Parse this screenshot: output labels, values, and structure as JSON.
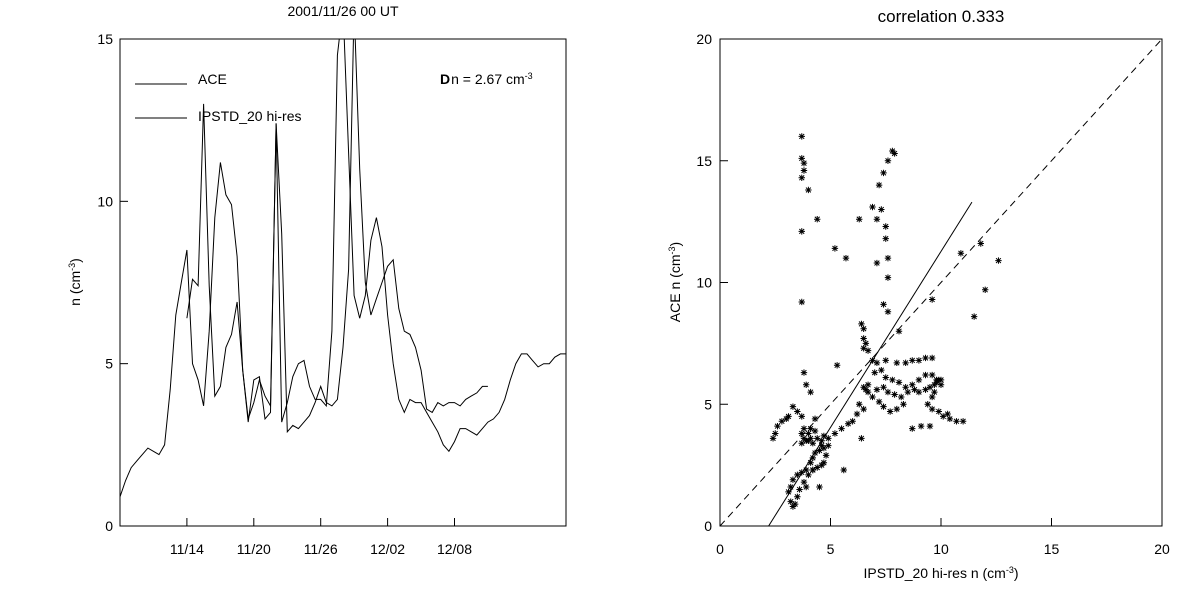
{
  "chart_data": [
    {
      "type": "line",
      "title": "2001/11/26 00 UT",
      "xlabel": "",
      "ylabel": "n (cm",
      "ylabel_sup": "-3",
      "ylabel_close": ")",
      "xlim": [
        0,
        40
      ],
      "ylim": [
        0,
        15
      ],
      "x_ticks": [
        {
          "label": "11/14",
          "x": 6.0
        },
        {
          "label": "11/20",
          "x": 12.0
        },
        {
          "label": "11/26",
          "x": 18.0
        },
        {
          "label": "12/02",
          "x": 24.0
        },
        {
          "label": "12/08",
          "x": 30.0
        }
      ],
      "y_ticks": [
        0,
        5,
        10,
        15
      ],
      "grid": false,
      "legend_position": "top-left",
      "annotation": {
        "bold": "D",
        "text": "n = 2.67 cm",
        "sup": "-3"
      },
      "series": [
        {
          "name": "ACE",
          "x": [
            0,
            0.5,
            1,
            1.5,
            2,
            2.5,
            3,
            3.5,
            4,
            4.5,
            5,
            5.5,
            6,
            6.5,
            7,
            7.5,
            8,
            8.5,
            9,
            9.5,
            10,
            10.5,
            11,
            11.5,
            12,
            12.5,
            13,
            13.5,
            14,
            14.5,
            15,
            15.5,
            16,
            16.5,
            17,
            17.5,
            18,
            18.5,
            19,
            19.5,
            20,
            20.5,
            21,
            21.5,
            22,
            22.5,
            23,
            23.5,
            24,
            24.5,
            25,
            25.5,
            26,
            26.5,
            27,
            27.5,
            28,
            28.5,
            29,
            29.5,
            30,
            30.5,
            31,
            31.5,
            32,
            32.5,
            33,
            33.5,
            34,
            34.5,
            35,
            35.5,
            36,
            36.5,
            37,
            37.5,
            38,
            38.5,
            39,
            39.5,
            40
          ],
          "values": [
            0.9,
            1.4,
            1.8,
            2.0,
            2.2,
            2.4,
            2.3,
            2.2,
            2.5,
            4.2,
            6.5,
            7.5,
            8.5,
            5.0,
            4.5,
            3.7,
            6.0,
            9.5,
            11.2,
            10.2,
            9.9,
            8.3,
            4.8,
            3.3,
            3.8,
            4.5,
            4.0,
            3.7,
            12.4,
            3.2,
            3.8,
            4.6,
            5.0,
            5.1,
            4.3,
            3.9,
            3.9,
            3.7,
            6.0,
            14.5,
            16.0,
            11.5,
            7.1,
            6.4,
            7.1,
            8.8,
            9.5,
            8.6,
            6.5,
            5.0,
            3.9,
            3.5,
            3.9,
            3.8,
            3.8,
            3.5,
            3.2,
            2.9,
            2.5,
            2.3,
            2.6,
            3.0,
            3.0,
            2.9,
            2.8,
            3.0,
            3.2,
            3.3,
            3.5,
            3.9,
            4.5,
            5.0,
            5.3,
            5.3,
            5.1,
            4.9,
            5.0,
            5.0,
            5.2,
            5.3,
            5.3
          ]
        },
        {
          "name": "IPSTD_20 hi-res",
          "x": [
            6,
            6.5,
            7,
            7.5,
            8,
            8.5,
            9,
            9.5,
            10,
            10.5,
            11,
            11.5,
            12,
            12.5,
            13,
            13.5,
            14,
            14.5,
            15,
            15.5,
            16,
            16.5,
            17,
            17.5,
            18,
            18.5,
            19,
            19.5,
            20,
            20.5,
            21,
            21.5,
            22,
            22.5,
            23,
            23.5,
            24,
            24.5,
            25,
            25.5,
            26,
            26.5,
            27,
            27.5,
            28,
            28.5,
            29,
            29.5,
            30,
            30.5,
            31,
            31.5,
            32,
            32.5,
            33
          ],
          "values": [
            6.4,
            7.6,
            7.4,
            13.0,
            7.4,
            4.0,
            4.3,
            5.5,
            5.9,
            6.9,
            4.8,
            3.2,
            4.5,
            4.6,
            3.3,
            3.5,
            12.4,
            9.0,
            2.9,
            3.1,
            3.0,
            3.2,
            3.4,
            3.8,
            4.3,
            3.8,
            3.7,
            3.9,
            5.5,
            7.9,
            16.0,
            11.0,
            7.5,
            6.5,
            7.0,
            7.5,
            8.0,
            8.2,
            6.7,
            6.0,
            5.9,
            5.5,
            4.8,
            3.6,
            3.5,
            3.8,
            3.7,
            3.8,
            3.8,
            3.7,
            3.9,
            4.0,
            4.1,
            4.3,
            4.3
          ]
        }
      ]
    },
    {
      "type": "scatter",
      "title": "correlation 0.333",
      "xlabel": "IPSTD_20 hi-res n (cm",
      "xlabel_sup": "-3",
      "xlabel_close": ")",
      "ylabel": "ACE n (cm",
      "ylabel_sup": "-3",
      "ylabel_close": ")",
      "xlim": [
        0,
        20
      ],
      "ylim": [
        0,
        20
      ],
      "x_ticks": [
        0,
        5,
        10,
        15,
        20
      ],
      "y_ticks": [
        0,
        5,
        10,
        15,
        20
      ],
      "grid": false,
      "points": [
        [
          3.7,
          16.0
        ],
        [
          3.7,
          15.1
        ],
        [
          3.8,
          14.9
        ],
        [
          3.8,
          14.6
        ],
        [
          3.7,
          14.3
        ],
        [
          4.0,
          13.8
        ],
        [
          4.4,
          12.6
        ],
        [
          3.7,
          12.1
        ],
        [
          5.2,
          11.4
        ],
        [
          5.7,
          11.0
        ],
        [
          3.7,
          9.2
        ],
        [
          6.3,
          12.6
        ],
        [
          6.9,
          13.1
        ],
        [
          7.1,
          12.6
        ],
        [
          7.5,
          12.3
        ],
        [
          7.2,
          14.0
        ],
        [
          7.4,
          14.5
        ],
        [
          7.6,
          15.0
        ],
        [
          7.8,
          15.4
        ],
        [
          7.9,
          15.3
        ],
        [
          7.3,
          13.0
        ],
        [
          7.5,
          11.8
        ],
        [
          7.6,
          11.0
        ],
        [
          7.1,
          10.8
        ],
        [
          7.6,
          10.2
        ],
        [
          7.4,
          9.1
        ],
        [
          7.6,
          8.8
        ],
        [
          8.1,
          8.0
        ],
        [
          6.4,
          8.3
        ],
        [
          6.5,
          8.1
        ],
        [
          6.5,
          7.7
        ],
        [
          6.6,
          7.5
        ],
        [
          6.5,
          7.3
        ],
        [
          6.7,
          7.2
        ],
        [
          6.9,
          6.8
        ],
        [
          7.0,
          6.3
        ],
        [
          6.7,
          5.8
        ],
        [
          6.6,
          5.6
        ],
        [
          6.3,
          5.0
        ],
        [
          6.5,
          4.8
        ],
        [
          6.2,
          4.6
        ],
        [
          6.0,
          4.3
        ],
        [
          5.8,
          4.2
        ],
        [
          5.5,
          4.0
        ],
        [
          5.2,
          3.8
        ],
        [
          4.9,
          3.6
        ],
        [
          4.7,
          3.2
        ],
        [
          10.9,
          11.2
        ],
        [
          11.8,
          11.6
        ],
        [
          12.6,
          10.9
        ],
        [
          12.0,
          9.7
        ],
        [
          11.5,
          8.6
        ],
        [
          9.6,
          9.3
        ],
        [
          5.3,
          6.6
        ],
        [
          6.4,
          3.6
        ],
        [
          5.6,
          2.3
        ],
        [
          3.8,
          6.3
        ],
        [
          3.9,
          5.8
        ],
        [
          4.1,
          5.5
        ],
        [
          3.3,
          4.9
        ],
        [
          3.5,
          4.7
        ],
        [
          3.7,
          4.5
        ],
        [
          4.3,
          4.4
        ],
        [
          4.1,
          4.0
        ],
        [
          3.0,
          4.4
        ],
        [
          2.8,
          4.3
        ],
        [
          2.6,
          4.1
        ],
        [
          2.5,
          3.8
        ],
        [
          2.4,
          3.6
        ],
        [
          3.1,
          4.5
        ],
        [
          3.8,
          4.0
        ],
        [
          3.7,
          3.8
        ],
        [
          3.8,
          3.6
        ],
        [
          3.9,
          3.5
        ],
        [
          3.7,
          3.4
        ],
        [
          4.0,
          3.5
        ],
        [
          4.1,
          3.6
        ],
        [
          4.2,
          3.4
        ],
        [
          4.4,
          3.6
        ],
        [
          4.6,
          3.5
        ],
        [
          4.6,
          3.3
        ],
        [
          4.5,
          3.1
        ],
        [
          4.3,
          3.0
        ],
        [
          4.2,
          2.8
        ],
        [
          4.1,
          2.6
        ],
        [
          3.9,
          2.3
        ],
        [
          3.7,
          2.2
        ],
        [
          3.5,
          2.1
        ],
        [
          3.3,
          1.9
        ],
        [
          3.2,
          1.6
        ],
        [
          3.1,
          1.4
        ],
        [
          3.2,
          1.0
        ],
        [
          3.3,
          0.8
        ],
        [
          3.4,
          0.9
        ],
        [
          3.5,
          1.2
        ],
        [
          3.6,
          1.5
        ],
        [
          3.8,
          1.8
        ],
        [
          4.0,
          2.1
        ],
        [
          4.2,
          2.3
        ],
        [
          4.4,
          2.4
        ],
        [
          4.6,
          2.5
        ],
        [
          4.7,
          2.6
        ],
        [
          4.8,
          2.9
        ],
        [
          4.9,
          3.3
        ],
        [
          4.7,
          3.7
        ],
        [
          4.3,
          3.9
        ],
        [
          4.0,
          3.8
        ],
        [
          4.2,
          2.3
        ],
        [
          3.9,
          1.6
        ],
        [
          4.5,
          1.6
        ],
        [
          7.1,
          5.6
        ],
        [
          7.4,
          5.7
        ],
        [
          7.6,
          5.5
        ],
        [
          7.9,
          5.4
        ],
        [
          8.2,
          5.3
        ],
        [
          8.5,
          5.5
        ],
        [
          8.8,
          5.6
        ],
        [
          9.0,
          5.5
        ],
        [
          9.3,
          5.6
        ],
        [
          9.5,
          5.7
        ],
        [
          9.7,
          5.8
        ],
        [
          9.8,
          6.0
        ],
        [
          10.0,
          6.0
        ],
        [
          9.6,
          6.2
        ],
        [
          9.3,
          6.2
        ],
        [
          9.0,
          6.0
        ],
        [
          8.7,
          5.8
        ],
        [
          8.4,
          5.7
        ],
        [
          8.1,
          5.9
        ],
        [
          7.8,
          6.0
        ],
        [
          7.5,
          6.1
        ],
        [
          7.3,
          6.4
        ],
        [
          7.1,
          6.7
        ],
        [
          7.5,
          6.8
        ],
        [
          8.0,
          6.7
        ],
        [
          8.4,
          6.7
        ],
        [
          8.7,
          6.8
        ],
        [
          9.0,
          6.8
        ],
        [
          9.3,
          6.9
        ],
        [
          9.6,
          6.9
        ],
        [
          9.9,
          6.0
        ],
        [
          9.8,
          5.9
        ],
        [
          10.0,
          5.8
        ],
        [
          9.7,
          5.5
        ],
        [
          9.6,
          5.3
        ],
        [
          9.4,
          5.0
        ],
        [
          9.6,
          4.8
        ],
        [
          9.9,
          4.7
        ],
        [
          10.1,
          4.5
        ],
        [
          10.4,
          4.4
        ],
        [
          10.7,
          4.3
        ],
        [
          11.0,
          4.3
        ],
        [
          10.3,
          4.6
        ],
        [
          9.1,
          4.1
        ],
        [
          8.7,
          4.0
        ],
        [
          9.5,
          4.1
        ],
        [
          8.3,
          5.0
        ],
        [
          8.0,
          4.8
        ],
        [
          7.7,
          4.7
        ],
        [
          7.4,
          4.9
        ],
        [
          7.2,
          5.1
        ],
        [
          6.9,
          5.3
        ],
        [
          6.7,
          5.5
        ],
        [
          6.5,
          5.7
        ]
      ],
      "fit_line": {
        "x1": 2.2,
        "y1": 0.0,
        "x2": 11.4,
        "y2": 13.3,
        "style": "solid"
      },
      "reference_line": {
        "x1": 0.0,
        "y1": 0.0,
        "x2": 20.0,
        "y2": 20.0,
        "style": "dashed"
      }
    }
  ]
}
